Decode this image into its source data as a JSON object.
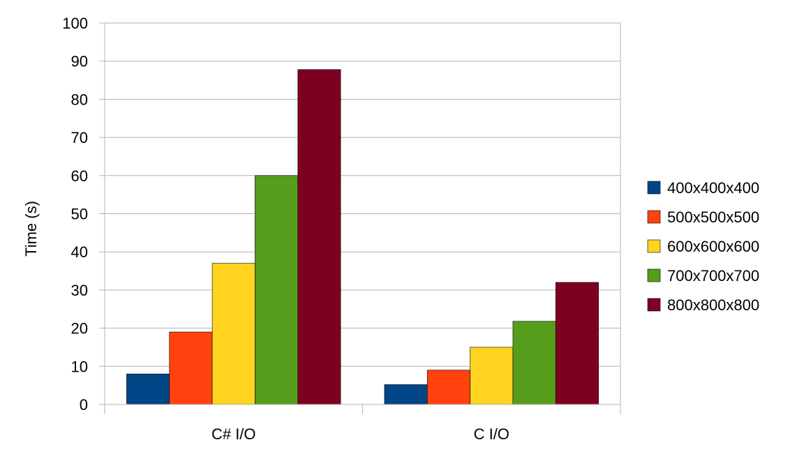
{
  "chart_data": {
    "type": "bar",
    "title": "",
    "xlabel": "",
    "ylabel": "Time (s)",
    "ylim": [
      0,
      100
    ],
    "yticks": [
      0,
      10,
      20,
      30,
      40,
      50,
      60,
      70,
      80,
      90,
      100
    ],
    "grid": true,
    "legend_position": "right",
    "categories": [
      "C# I/O",
      "C I/O"
    ],
    "series": [
      {
        "name": "400x400x400",
        "color": "#004586",
        "values": [
          8,
          5.2
        ]
      },
      {
        "name": "500x500x500",
        "color": "#ff420e",
        "values": [
          19,
          9
        ]
      },
      {
        "name": "600x600x600",
        "color": "#ffd320",
        "values": [
          37,
          15
        ]
      },
      {
        "name": "700x700x700",
        "color": "#579d1c",
        "values": [
          60,
          21.8
        ]
      },
      {
        "name": "800x800x800",
        "color": "#7e0021",
        "values": [
          87.8,
          32
        ]
      }
    ]
  }
}
